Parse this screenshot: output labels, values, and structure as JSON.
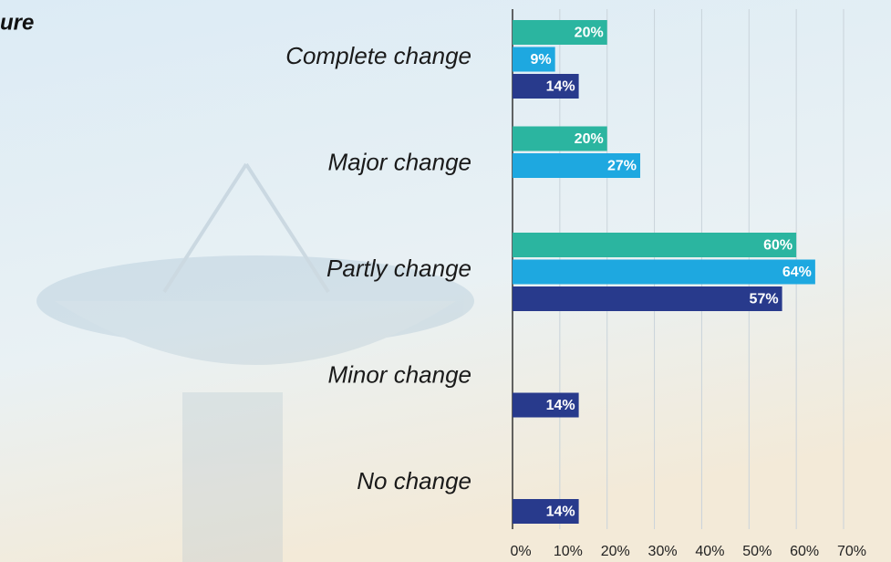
{
  "chart_data": {
    "type": "hbar",
    "title": "ure",
    "categories": [
      "Complete change",
      "Major change",
      "Partly change",
      "Minor change",
      "No change"
    ],
    "series": [
      {
        "color": "#2bb5a0",
        "values": [
          20,
          20,
          60,
          null,
          null
        ],
        "value_labels": [
          "20%",
          "20%",
          "60%",
          null,
          null
        ]
      },
      {
        "color": "#1ea8e0",
        "values": [
          9,
          27,
          64,
          null,
          null
        ],
        "value_labels": [
          "9%",
          "27%",
          "64%",
          null,
          null
        ]
      },
      {
        "color": "#283a8c",
        "values": [
          14,
          null,
          57,
          14,
          14
        ],
        "value_labels": [
          "14%",
          null,
          "57%",
          "14%",
          "14%"
        ]
      }
    ],
    "xlim": [
      0,
      70
    ],
    "xticks": [
      {
        "value": 0,
        "label": "0%"
      },
      {
        "value": 10,
        "label": "10%"
      },
      {
        "value": 20,
        "label": "20%"
      },
      {
        "value": 30,
        "label": "30%"
      },
      {
        "value": 40,
        "label": "40%"
      },
      {
        "value": 50,
        "label": "50%"
      },
      {
        "value": 60,
        "label": "60%"
      },
      {
        "value": 70,
        "label": "70%"
      }
    ],
    "grid": true
  }
}
